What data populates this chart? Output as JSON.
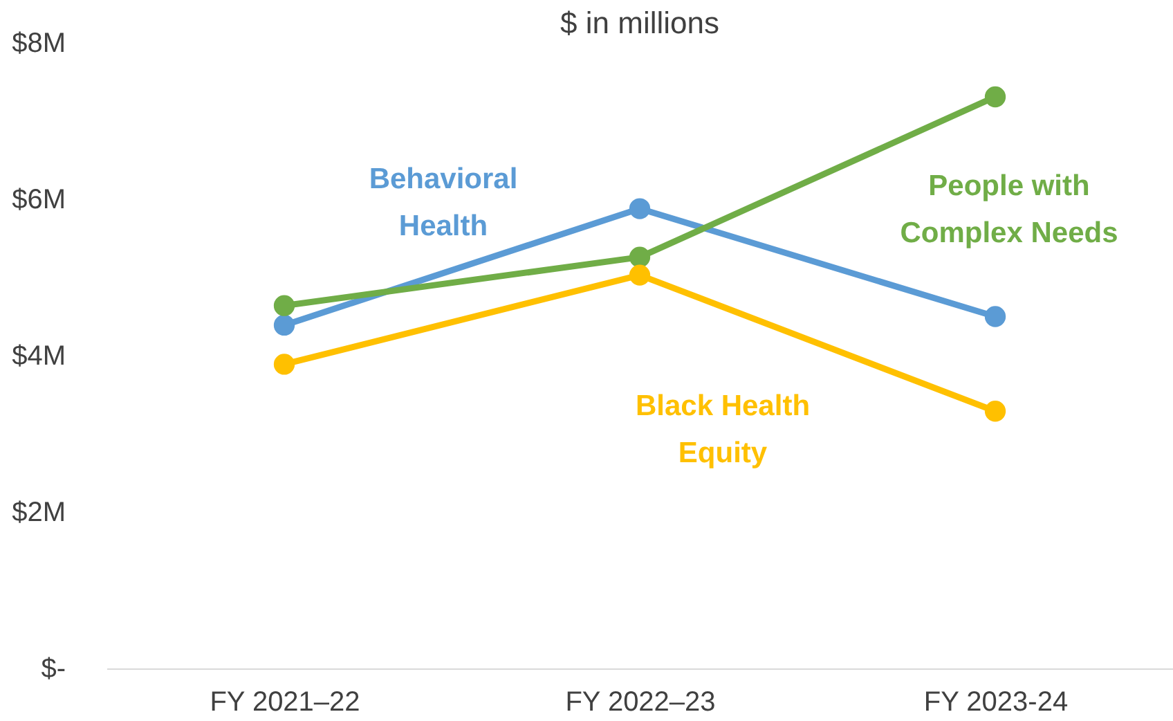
{
  "chart_data": {
    "type": "line",
    "title": "$ in millions",
    "categories": [
      "FY 2021–22",
      "FY 2022–23",
      "FY 2023-24"
    ],
    "series": [
      {
        "name": "Behavioral\nHealth",
        "color": "#5b9bd5",
        "values": [
          4.39,
          5.88,
          4.5
        ]
      },
      {
        "name": "People with\nComplex Needs",
        "color": "#70ad47",
        "values": [
          4.64,
          5.26,
          7.31
        ]
      },
      {
        "name": "Black Health\nEquity",
        "color": "#ffc000",
        "values": [
          3.89,
          5.03,
          3.29
        ]
      }
    ],
    "ylim": [
      0,
      8
    ],
    "yticks": [
      {
        "value": 0,
        "label": "$-"
      },
      {
        "value": 2,
        "label": "$2M"
      },
      {
        "value": 4,
        "label": "$4M"
      },
      {
        "value": 6,
        "label": "$6M"
      },
      {
        "value": 8,
        "label": "$8M"
      }
    ],
    "grid": false,
    "legend": false,
    "marker": "circle",
    "line_style": "solid"
  }
}
